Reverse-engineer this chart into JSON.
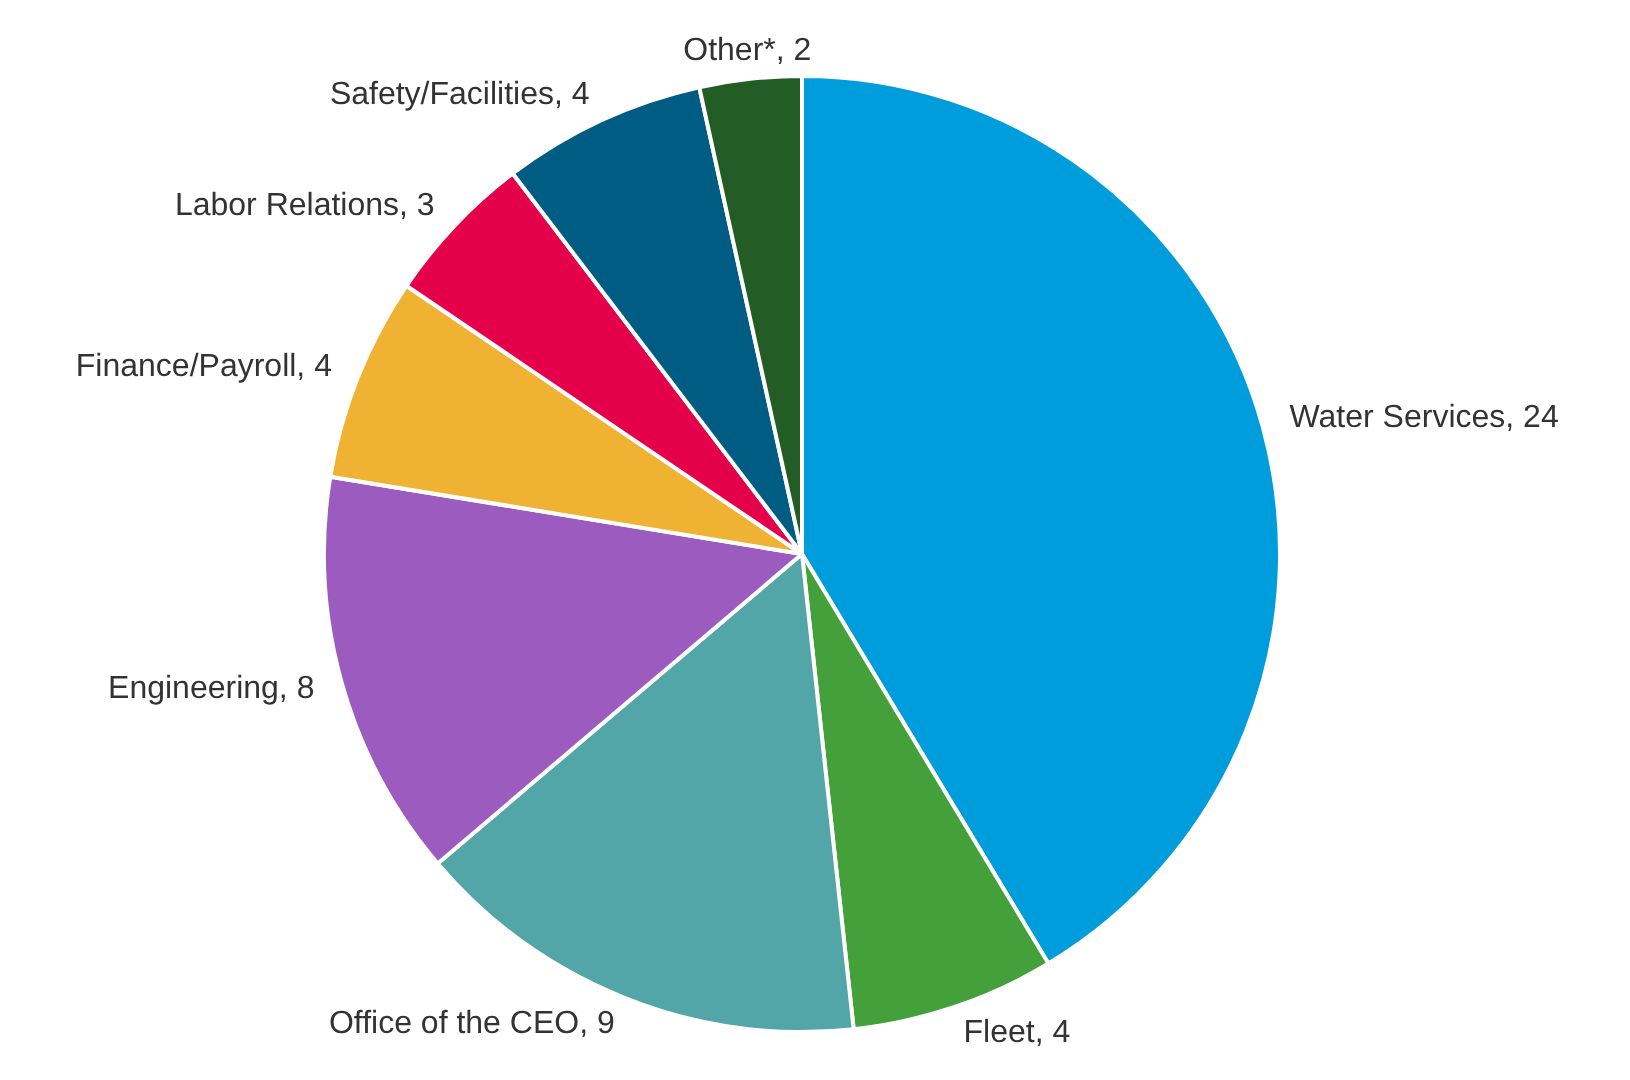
{
  "chart_data": {
    "type": "pie",
    "categories": [
      "Water Services",
      "Fleet",
      "Office of the CEO",
      "Engineering",
      "Finance/Payroll",
      "Labor Relations",
      "Safety/Facilities",
      "Other*"
    ],
    "values": [
      24,
      4,
      9,
      8,
      4,
      3,
      4,
      2
    ],
    "colors": [
      "#009ddc",
      "#43a03a",
      "#52a6a8",
      "#9b5bbf",
      "#f0b233",
      "#e4004a",
      "#005c82",
      "#235c24"
    ],
    "value_labels": [
      ", 24",
      ", 4",
      ", 9",
      ", 8",
      ", 4",
      ", 3",
      ", 4",
      ", 2"
    ]
  }
}
